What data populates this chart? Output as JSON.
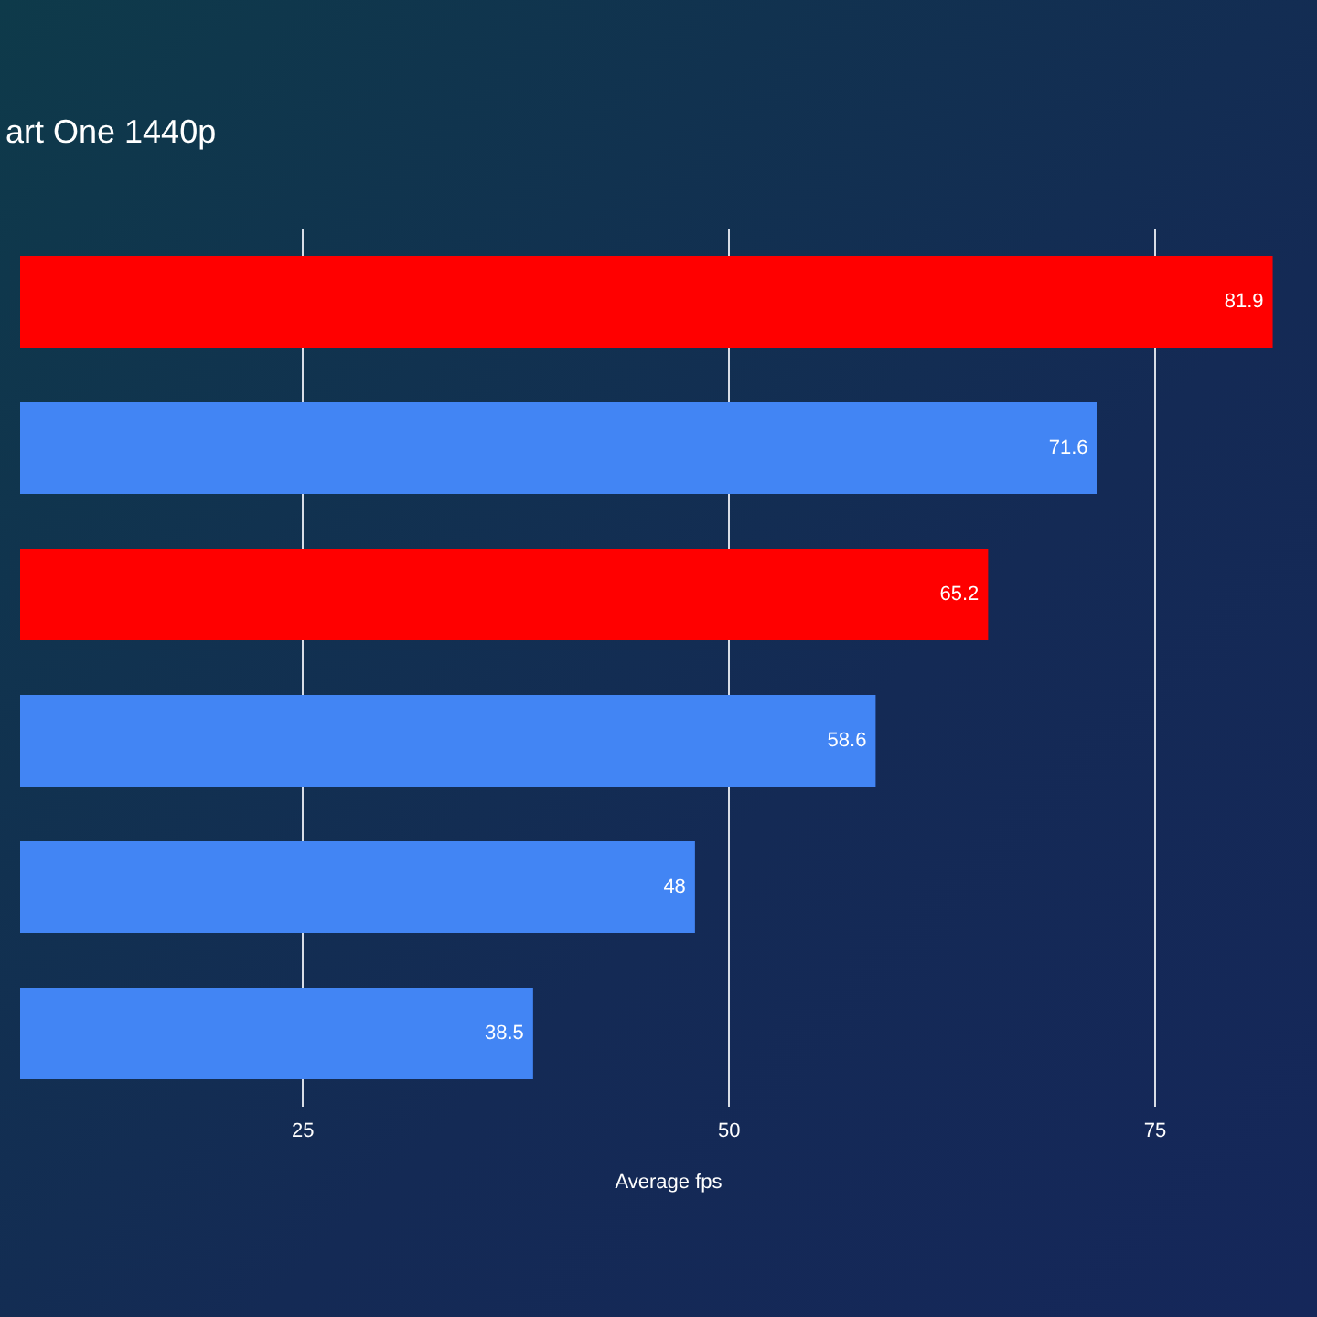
{
  "chart_data": {
    "type": "bar",
    "orientation": "horizontal",
    "title": "art One 1440p",
    "xlabel": "Average fps",
    "categories": [
      null,
      null,
      null,
      null,
      null,
      null
    ],
    "values": [
      81.9,
      71.6,
      65.2,
      58.6,
      48,
      38.5
    ],
    "colors": [
      "#ff0000",
      "#4285f4",
      "#ff0000",
      "#4285f4",
      "#4285f4",
      "#4285f4"
    ],
    "xlim": [
      8.4,
      84.5
    ],
    "xticks": [
      25,
      50,
      75
    ],
    "grid": "x",
    "data_labels": true
  }
}
